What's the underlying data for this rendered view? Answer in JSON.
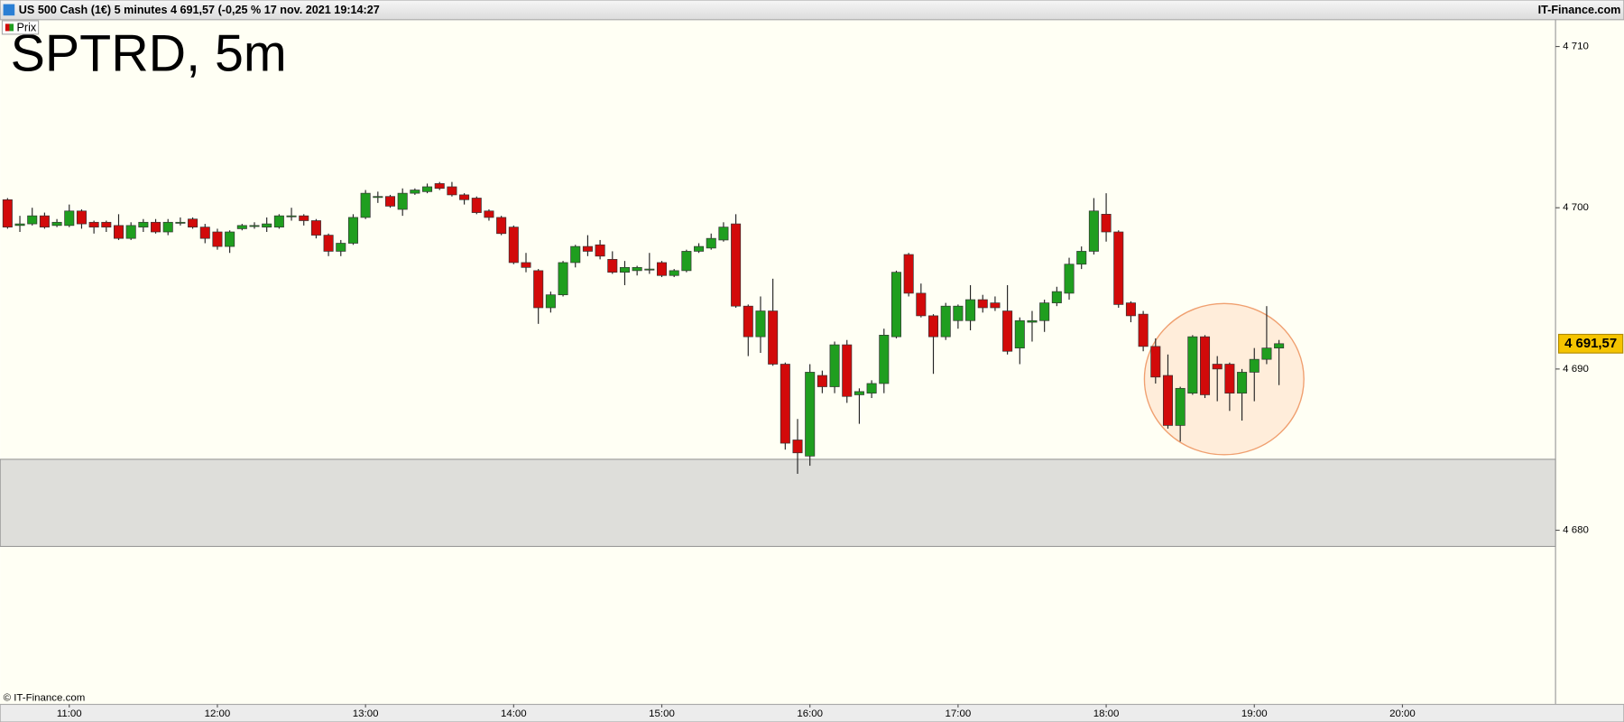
{
  "chart_data": {
    "type": "candlestick",
    "title": "US 500 Cash (1€) 5 minutes 4 691,57 (-0,25 % 17 nov. 2021 19:14:27",
    "source": "IT-Finance.com",
    "watermark": "SPTRD, 5m",
    "copyright": "© IT-Finance.com",
    "up_color": "#1f9e1f",
    "down_color": "#d20a0a",
    "x": [
      635,
      640,
      645,
      650,
      655,
      660,
      665,
      670,
      675,
      680,
      685,
      690,
      695,
      700,
      705,
      710,
      715,
      720,
      725,
      730,
      735,
      740,
      745,
      750,
      755,
      760,
      765,
      770,
      775,
      780,
      785,
      790,
      795,
      800,
      805,
      810,
      815,
      820,
      825,
      830,
      835,
      840,
      845,
      850,
      855,
      860,
      865,
      870,
      875,
      880,
      885,
      890,
      895,
      900,
      905,
      910,
      915,
      920,
      925,
      930,
      935,
      940,
      945,
      950,
      955,
      960,
      965,
      970,
      975,
      980,
      985,
      990,
      995,
      1000,
      1005,
      1010,
      1015,
      1020,
      1025,
      1030,
      1035,
      1040,
      1045,
      1050,
      1055,
      1060,
      1065,
      1070,
      1075,
      1080,
      1085,
      1090,
      1095,
      1100,
      1105,
      1110,
      1115,
      1120,
      1125,
      1130,
      1135,
      1140,
      1145,
      1150
    ],
    "series": [
      {
        "name": "Prix",
        "open": [
          4700.5,
          4698.9,
          4699.0,
          4699.5,
          4698.9,
          4698.9,
          4699.8,
          4699.1,
          4699.1,
          4698.9,
          4698.1,
          4698.8,
          4699.1,
          4698.5,
          4699.1,
          4699.3,
          4698.8,
          4698.5,
          4697.6,
          4698.7,
          4698.9,
          4698.8,
          4698.8,
          4699.5,
          4699.5,
          4699.2,
          4698.3,
          4697.3,
          4697.8,
          4699.4,
          4700.7,
          4700.7,
          4699.9,
          4700.9,
          4701.0,
          4701.5,
          4701.3,
          4700.8,
          4700.6,
          4699.8,
          4699.4,
          4698.8,
          4696.6,
          4696.1,
          4693.8,
          4694.6,
          4696.6,
          4697.6,
          4697.7,
          4696.8,
          4696.0,
          4696.1,
          4696.2,
          4696.6,
          4695.8,
          4696.1,
          4697.3,
          4697.5,
          4698.0,
          4699.0,
          4693.9,
          4692.0,
          4693.6,
          4690.3,
          4685.6,
          4684.6,
          4689.6,
          4688.9,
          4691.5,
          4688.4,
          4688.5,
          4689.1,
          4692.0,
          4697.1,
          4694.7,
          4693.3,
          4692.0,
          4693.0,
          4693.0,
          4694.3,
          4694.1,
          4693.6,
          4691.3,
          4692.9,
          4693.0,
          4694.1,
          4694.7,
          4696.5,
          4697.3,
          4699.6,
          4698.5,
          4694.1,
          4693.4,
          4691.4,
          4689.6,
          4686.5,
          4688.5,
          4692.0,
          4690.3,
          4690.3,
          4688.5,
          4689.8,
          4690.6,
          4691.3
        ],
        "high": [
          4700.6,
          4699.5,
          4700.0,
          4699.7,
          4699.3,
          4700.2,
          4699.9,
          4699.2,
          4699.2,
          4699.6,
          4699.1,
          4699.3,
          4699.3,
          4699.3,
          4699.4,
          4699.4,
          4699.0,
          4698.7,
          4698.6,
          4699.0,
          4699.1,
          4699.4,
          4699.6,
          4700.0,
          4699.6,
          4699.3,
          4698.4,
          4698.0,
          4699.6,
          4701.1,
          4701.0,
          4700.8,
          4701.2,
          4701.2,
          4701.5,
          4701.6,
          4701.6,
          4700.9,
          4700.7,
          4699.9,
          4699.5,
          4698.9,
          4697.2,
          4696.2,
          4694.8,
          4696.7,
          4697.7,
          4698.3,
          4698.0,
          4697.3,
          4696.7,
          4696.4,
          4697.2,
          4696.7,
          4696.2,
          4697.4,
          4697.8,
          4698.4,
          4699.1,
          4699.6,
          4694.0,
          4694.5,
          4695.6,
          4690.4,
          4686.9,
          4690.3,
          4689.9,
          4691.7,
          4691.8,
          4688.8,
          4689.3,
          4692.5,
          4696.1,
          4697.2,
          4695.3,
          4693.4,
          4694.1,
          4694.0,
          4695.2,
          4694.6,
          4694.5,
          4695.2,
          4693.2,
          4693.6,
          4694.3,
          4695.1,
          4696.9,
          4697.6,
          4700.6,
          4700.9,
          4698.6,
          4694.2,
          4693.6,
          4691.9,
          4690.9,
          4688.9,
          4692.1,
          4692.1,
          4690.8,
          4690.4,
          4690.0,
          4691.3,
          4693.9,
          4691.8
        ],
        "low": [
          4698.7,
          4698.5,
          4698.9,
          4698.7,
          4698.8,
          4698.8,
          4698.7,
          4698.4,
          4698.5,
          4698.0,
          4698.0,
          4698.5,
          4698.4,
          4698.3,
          4698.9,
          4698.7,
          4697.8,
          4697.4,
          4697.2,
          4698.6,
          4698.7,
          4698.5,
          4698.7,
          4699.2,
          4698.9,
          4698.1,
          4697.0,
          4697.0,
          4697.7,
          4699.3,
          4700.3,
          4700.0,
          4699.5,
          4700.8,
          4700.9,
          4701.1,
          4700.7,
          4700.2,
          4699.6,
          4699.2,
          4698.3,
          4696.5,
          4696.0,
          4692.8,
          4693.5,
          4694.5,
          4696.3,
          4697.0,
          4696.8,
          4695.9,
          4695.2,
          4695.8,
          4695.9,
          4695.7,
          4695.7,
          4696.0,
          4697.2,
          4697.4,
          4697.9,
          4693.8,
          4690.8,
          4691.0,
          4690.2,
          4685.0,
          4683.5,
          4684.0,
          4688.5,
          4688.5,
          4687.9,
          4686.6,
          4688.2,
          4688.5,
          4691.9,
          4694.5,
          4693.2,
          4689.7,
          4691.8,
          4692.5,
          4692.4,
          4693.5,
          4693.6,
          4690.9,
          4690.3,
          4691.7,
          4692.3,
          4693.9,
          4694.3,
          4696.2,
          4697.1,
          4697.9,
          4693.8,
          4692.9,
          4691.1,
          4689.1,
          4686.3,
          4685.5,
          4688.4,
          4688.2,
          4688.0,
          4687.4,
          4686.8,
          4688.0,
          4690.3,
          4689.0
        ],
        "close": [
          4698.8,
          4699.0,
          4699.5,
          4698.8,
          4699.1,
          4699.8,
          4699.0,
          4698.8,
          4698.8,
          4698.1,
          4698.9,
          4699.1,
          4698.5,
          4699.1,
          4699.1,
          4698.8,
          4698.1,
          4697.6,
          4698.5,
          4698.9,
          4698.9,
          4699.0,
          4699.5,
          4699.5,
          4699.2,
          4698.3,
          4697.3,
          4697.8,
          4699.4,
          4700.9,
          4700.7,
          4700.1,
          4700.9,
          4701.1,
          4701.3,
          4701.2,
          4700.8,
          4700.5,
          4699.7,
          4699.4,
          4698.4,
          4696.6,
          4696.3,
          4693.8,
          4694.6,
          4696.6,
          4697.6,
          4697.3,
          4697.0,
          4696.0,
          4696.3,
          4696.3,
          4696.2,
          4695.8,
          4696.1,
          4697.3,
          4697.6,
          4698.1,
          4698.8,
          4693.9,
          4692.0,
          4693.6,
          4690.3,
          4685.4,
          4684.8,
          4689.8,
          4688.9,
          4691.5,
          4688.3,
          4688.6,
          4689.1,
          4692.1,
          4696.0,
          4694.7,
          4693.3,
          4692.0,
          4693.9,
          4693.9,
          4694.3,
          4693.8,
          4693.8,
          4691.1,
          4693.0,
          4693.0,
          4694.1,
          4694.8,
          4696.5,
          4697.3,
          4699.8,
          4698.5,
          4694.0,
          4693.3,
          4691.4,
          4689.5,
          4686.5,
          4688.8,
          4692.0,
          4688.4,
          4690.0,
          4688.5,
          4689.8,
          4690.6,
          4691.3,
          4691.57
        ],
        "last_value_label": "4 691,57"
      }
    ],
    "zone": {
      "from": 4679.0,
      "to": 4684.4,
      "color": "#dededa"
    },
    "xlim": [
      632,
      1262
    ],
    "ylim": [
      4669.2,
      4711.6
    ],
    "xticks": [
      {
        "value": 660,
        "label": "11:00"
      },
      {
        "value": 720,
        "label": "12:00"
      },
      {
        "value": 780,
        "label": "13:00"
      },
      {
        "value": 840,
        "label": "14:00"
      },
      {
        "value": 900,
        "label": "15:00"
      },
      {
        "value": 960,
        "label": "16:00"
      },
      {
        "value": 1020,
        "label": "17:00"
      },
      {
        "value": 1080,
        "label": "18:00"
      },
      {
        "value": 1140,
        "label": "19:00"
      },
      {
        "value": 1200,
        "label": "20:00"
      }
    ],
    "yticks": [
      {
        "value": 4680,
        "label": "4 680"
      },
      {
        "value": 4690,
        "label": "4 690"
      },
      {
        "value": 4700,
        "label": "4 700"
      },
      {
        "value": 4710,
        "label": "4 710"
      }
    ]
  }
}
